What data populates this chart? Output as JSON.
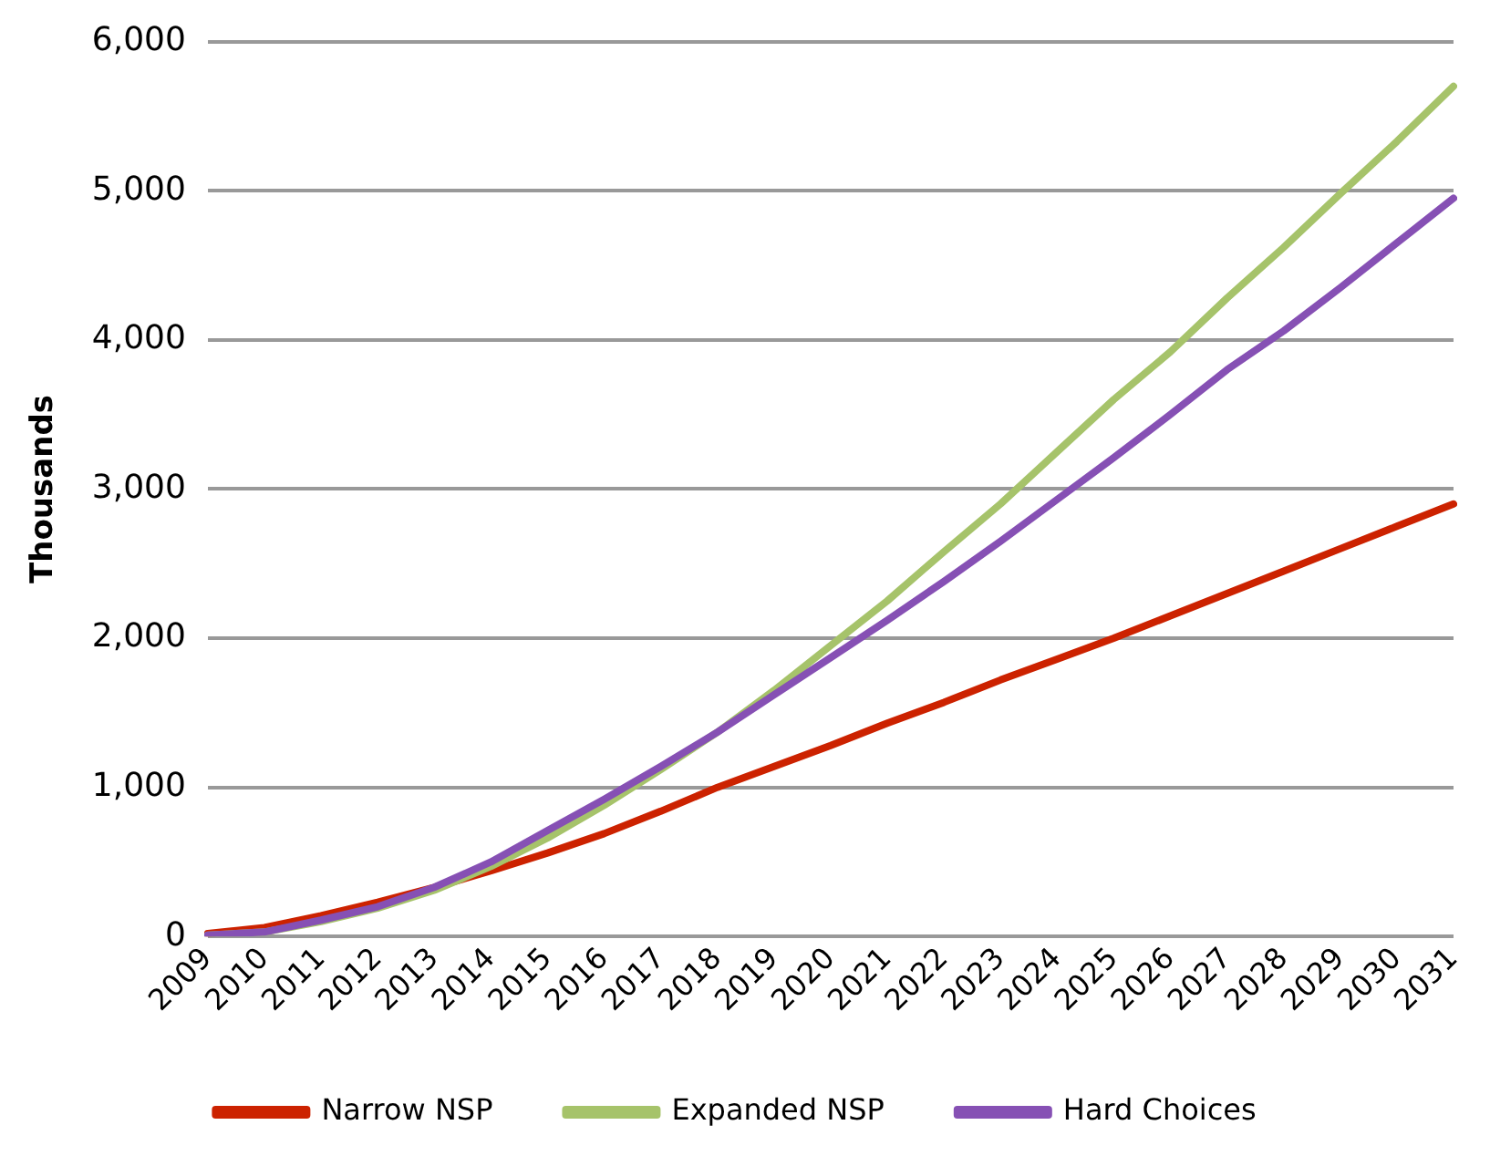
{
  "chart_data": {
    "type": "line",
    "ylabel": "Thousands",
    "categories": [
      "2009",
      "2010",
      "2011",
      "2012",
      "2013",
      "2014",
      "2015",
      "2016",
      "2017",
      "2018",
      "2019",
      "2020",
      "2021",
      "2022",
      "2023",
      "2024",
      "2025",
      "2026",
      "2027",
      "2028",
      "2029",
      "2030",
      "2031"
    ],
    "series": [
      {
        "name": "Narrow NSP",
        "color": "#cc2200",
        "values": [
          20,
          60,
          140,
          230,
          330,
          440,
          560,
          690,
          840,
          1000,
          1140,
          1280,
          1430,
          1570,
          1720,
          1860,
          2000,
          2150,
          2300,
          2450,
          2600,
          2750,
          2900
        ]
      },
      {
        "name": "Expanded NSP",
        "color": "#a6c36a",
        "values": [
          10,
          30,
          100,
          190,
          310,
          470,
          660,
          880,
          1120,
          1370,
          1650,
          1950,
          2250,
          2580,
          2900,
          3250,
          3600,
          3920,
          4280,
          4620,
          4980,
          5330,
          5700
        ]
      },
      {
        "name": "Hard Choices",
        "color": "#8650b4",
        "values": [
          10,
          30,
          110,
          200,
          330,
          500,
          710,
          920,
          1140,
          1370,
          1620,
          1870,
          2120,
          2380,
          2650,
          2930,
          3210,
          3500,
          3800,
          4060,
          4350,
          4650,
          4950
        ]
      }
    ],
    "ylim": [
      0,
      6000
    ],
    "yticks": [
      {
        "value": 0,
        "label": "0"
      },
      {
        "value": 1000,
        "label": "1,000"
      },
      {
        "value": 2000,
        "label": "2,000"
      },
      {
        "value": 3000,
        "label": "3,000"
      },
      {
        "value": 4000,
        "label": "4,000"
      },
      {
        "value": 5000,
        "label": "5,000"
      },
      {
        "value": 6000,
        "label": "6,000"
      }
    ],
    "grid": "y",
    "legend": "bottom",
    "marker": "none",
    "line_style": "solid"
  }
}
